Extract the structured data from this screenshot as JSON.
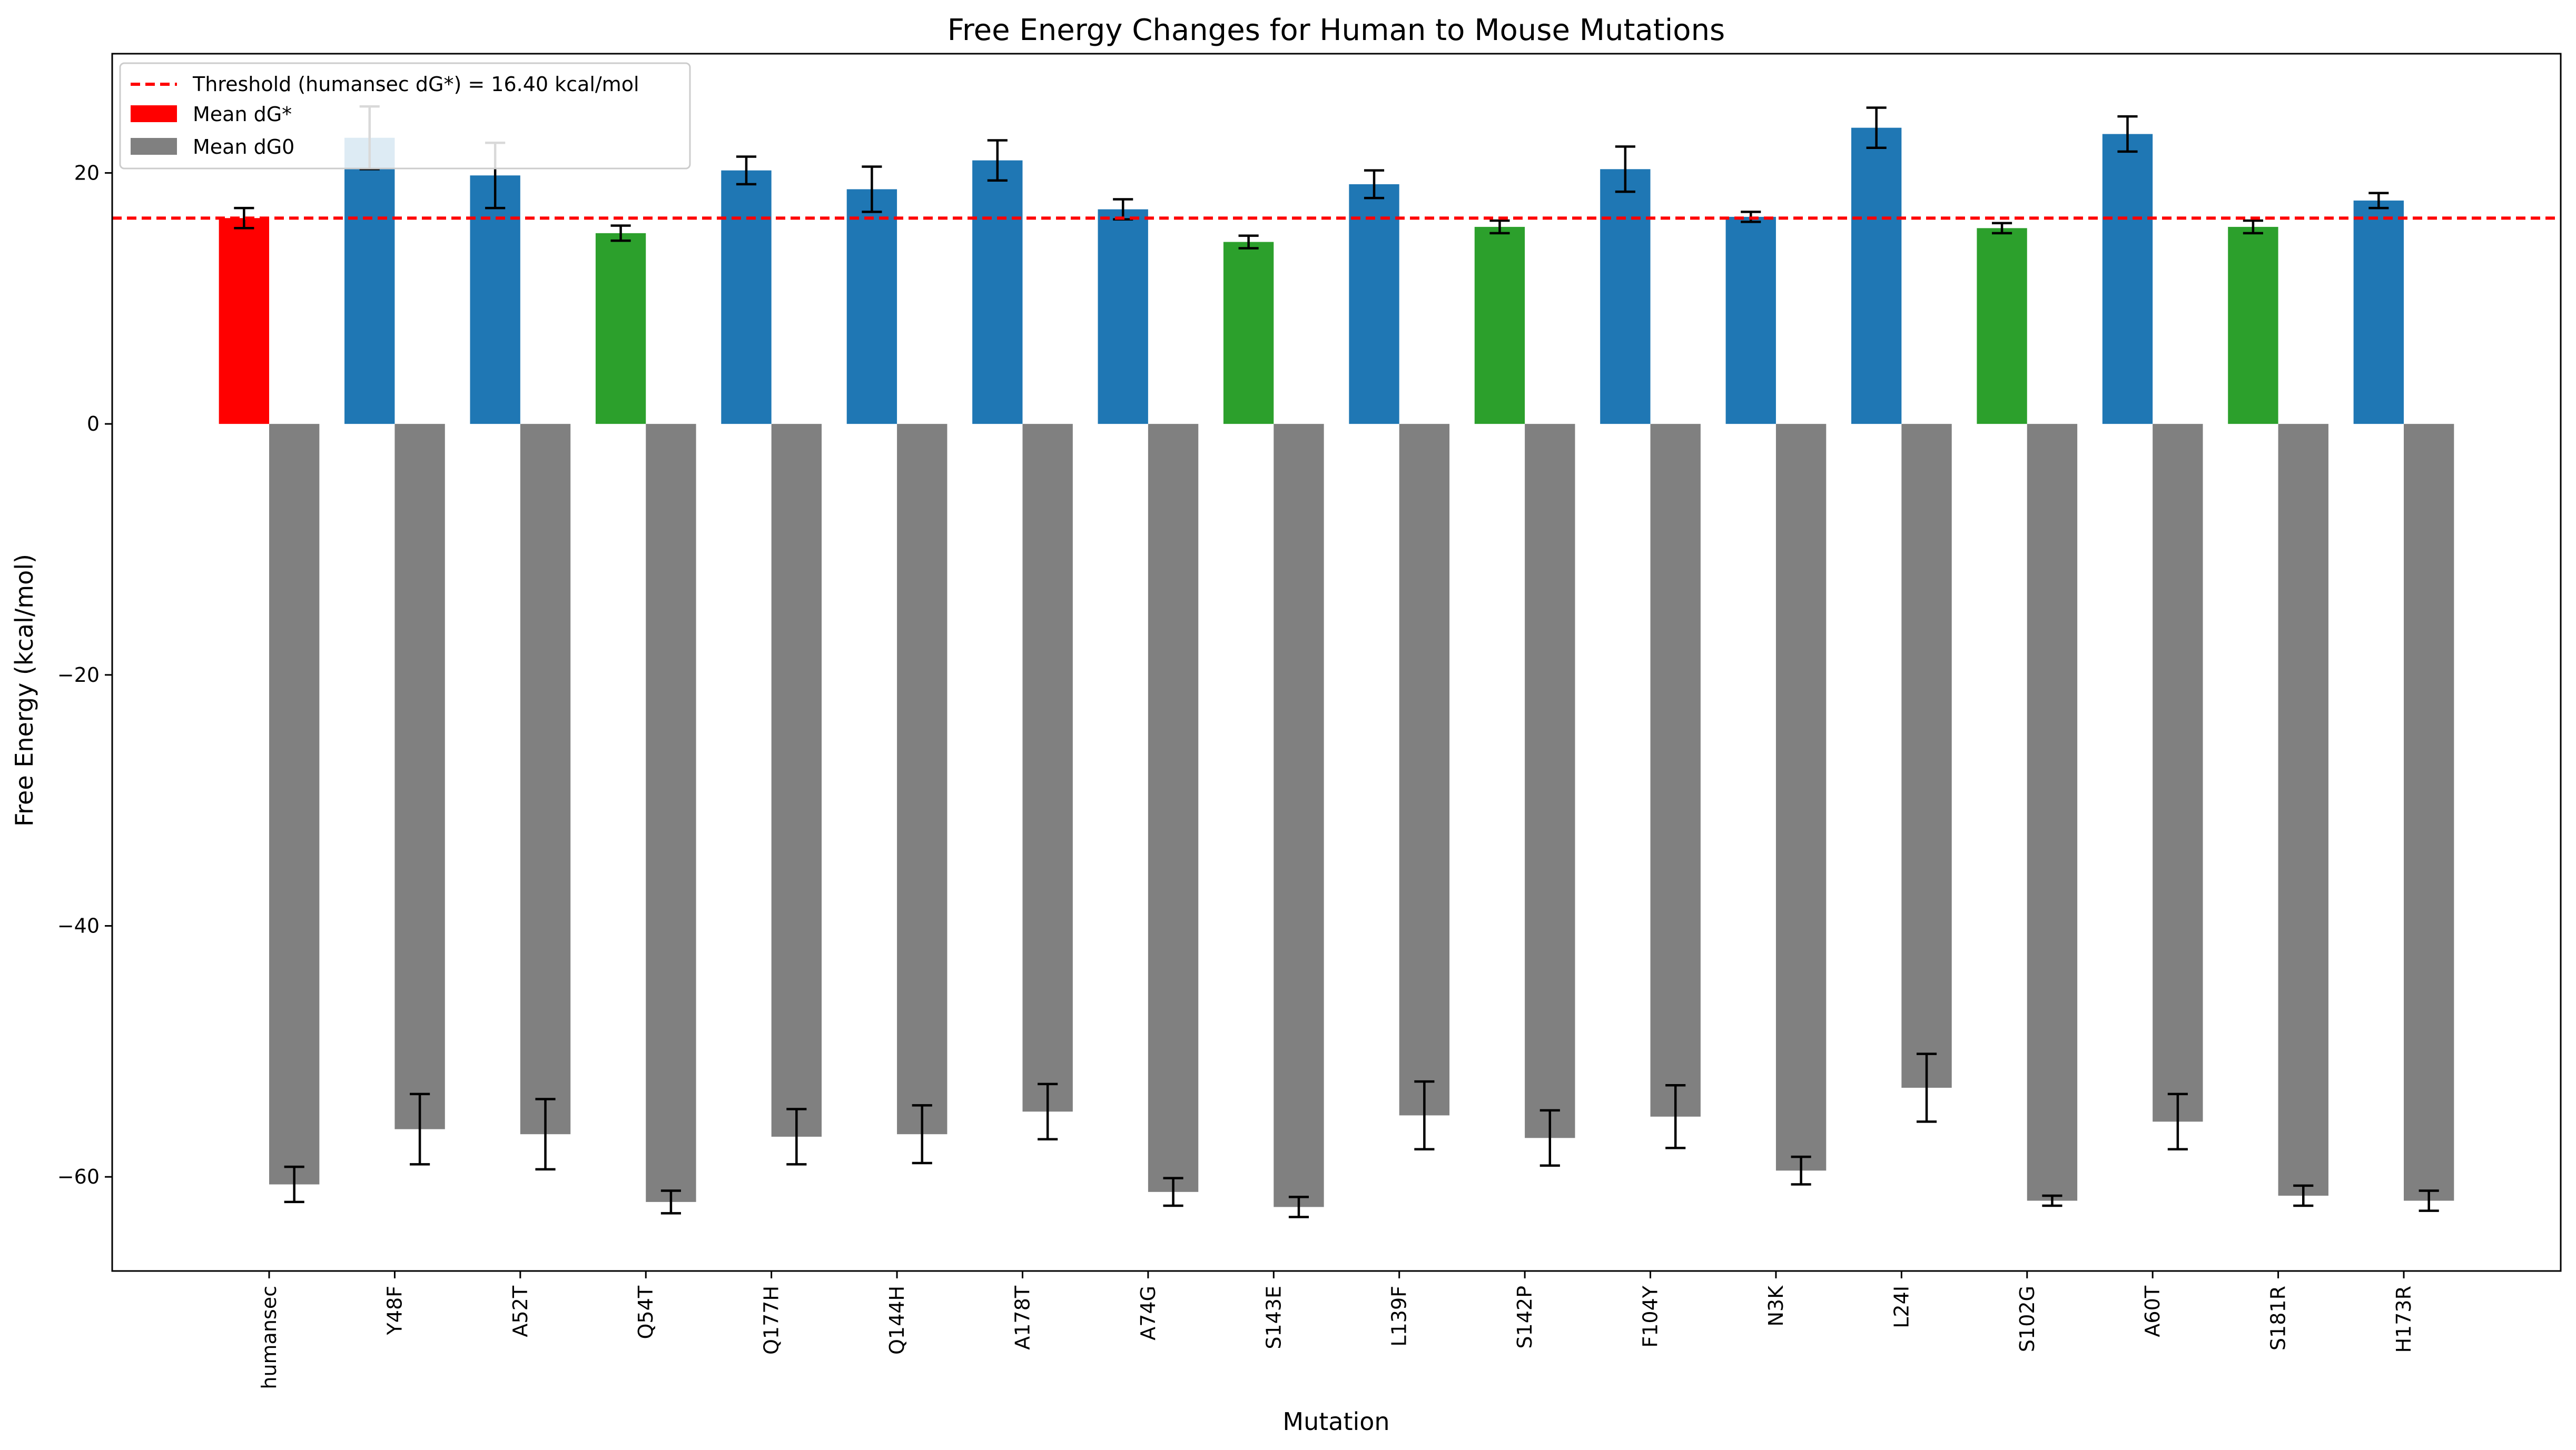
{
  "chart_data": {
    "type": "bar",
    "title": "Free Energy Changes for Human to Mouse Mutations",
    "xlabel": "Mutation",
    "ylabel": "Free Energy (kcal/mol)",
    "ylim": [
      -67.5,
      29.5
    ],
    "yticks": [
      -60,
      -40,
      -20,
      0,
      20
    ],
    "ytick_labels": [
      "−60",
      "−40",
      "−20",
      "0",
      "20"
    ],
    "grid": false,
    "legend_position": "top-left",
    "categories": [
      "humansec",
      "Y48F",
      "A52T",
      "Q54T",
      "Q177H",
      "Q144H",
      "A178T",
      "A74G",
      "S143E",
      "L139F",
      "S142P",
      "F104Y",
      "N3K",
      "L24I",
      "S102G",
      "A60T",
      "S181R",
      "H173R"
    ],
    "series": [
      {
        "name": "Mean dG*",
        "legend_color": "#ff0000",
        "values": [
          16.4,
          22.8,
          19.8,
          15.2,
          20.2,
          18.7,
          21.0,
          17.1,
          14.5,
          19.1,
          15.7,
          20.3,
          16.5,
          23.6,
          15.6,
          23.1,
          15.7,
          17.8
        ],
        "errors": [
          0.8,
          2.5,
          2.6,
          0.6,
          1.1,
          1.8,
          1.6,
          0.8,
          0.5,
          1.1,
          0.5,
          1.8,
          0.4,
          1.6,
          0.4,
          1.4,
          0.5,
          0.6
        ],
        "colors": [
          "#ff0000",
          "#1f77b4",
          "#1f77b4",
          "#2ca02c",
          "#1f77b4",
          "#1f77b4",
          "#1f77b4",
          "#1f77b4",
          "#2ca02c",
          "#1f77b4",
          "#2ca02c",
          "#1f77b4",
          "#1f77b4",
          "#1f77b4",
          "#2ca02c",
          "#1f77b4",
          "#2ca02c",
          "#1f77b4"
        ]
      },
      {
        "name": "Mean dG0",
        "legend_color": "#808080",
        "values": [
          -60.6,
          -56.2,
          -56.6,
          -62.0,
          -56.8,
          -56.6,
          -54.8,
          -61.2,
          -62.4,
          -55.1,
          -56.9,
          -55.2,
          -59.5,
          -52.9,
          -61.9,
          -55.6,
          -61.5,
          -61.9
        ],
        "errors": [
          1.4,
          2.8,
          2.8,
          0.9,
          2.2,
          2.3,
          2.2,
          1.1,
          0.8,
          2.7,
          2.2,
          2.5,
          1.1,
          2.7,
          0.4,
          2.2,
          0.8,
          0.8
        ],
        "colors": [
          "#808080",
          "#808080",
          "#808080",
          "#808080",
          "#808080",
          "#808080",
          "#808080",
          "#808080",
          "#808080",
          "#808080",
          "#808080",
          "#808080",
          "#808080",
          "#808080",
          "#808080",
          "#808080",
          "#808080",
          "#808080"
        ]
      }
    ],
    "threshold": {
      "value": 16.4,
      "label": "Threshold (humansec dG*) = 16.40 kcal/mol",
      "color": "#ff0000",
      "style": "dashed"
    },
    "highlight_color": "#2ca02c"
  }
}
